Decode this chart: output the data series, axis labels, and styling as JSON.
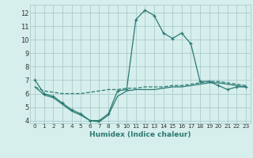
{
  "title": "",
  "xlabel": "Humidex (Indice chaleur)",
  "background_color": "#d6eeec",
  "grid_color": "#aacccc",
  "line_color": "#2a7a72",
  "x_values": [
    0,
    1,
    2,
    3,
    4,
    5,
    6,
    7,
    8,
    9,
    10,
    11,
    12,
    13,
    14,
    15,
    16,
    17,
    18,
    19,
    20,
    21,
    22,
    23
  ],
  "series1": [
    7.0,
    6.0,
    5.8,
    5.3,
    4.8,
    4.5,
    4.0,
    4.0,
    4.5,
    6.2,
    6.3,
    11.5,
    12.2,
    11.8,
    10.5,
    10.1,
    10.5,
    9.7,
    6.9,
    6.9,
    6.6,
    6.3,
    6.5,
    6.5
  ],
  "series2": [
    6.5,
    6.2,
    6.1,
    6.0,
    6.0,
    6.0,
    6.1,
    6.2,
    6.3,
    6.3,
    6.4,
    6.4,
    6.5,
    6.5,
    6.5,
    6.6,
    6.6,
    6.7,
    6.8,
    6.9,
    6.9,
    6.8,
    6.7,
    6.6
  ],
  "series3": [
    6.5,
    5.9,
    5.7,
    5.2,
    4.7,
    4.4,
    4.0,
    3.9,
    4.4,
    5.8,
    6.2,
    6.3,
    6.3,
    6.3,
    6.4,
    6.5,
    6.5,
    6.6,
    6.7,
    6.8,
    6.8,
    6.7,
    6.6,
    6.5
  ],
  "ylim": [
    3.8,
    12.6
  ],
  "xlim": [
    -0.5,
    23.5
  ],
  "yticks": [
    4,
    5,
    6,
    7,
    8,
    9,
    10,
    11,
    12
  ],
  "xticks": [
    0,
    1,
    2,
    3,
    4,
    5,
    6,
    7,
    8,
    9,
    10,
    11,
    12,
    13,
    14,
    15,
    16,
    17,
    18,
    19,
    20,
    21,
    22,
    23
  ],
  "tick_color": "#333333",
  "xlabel_color": "#2a7a72"
}
